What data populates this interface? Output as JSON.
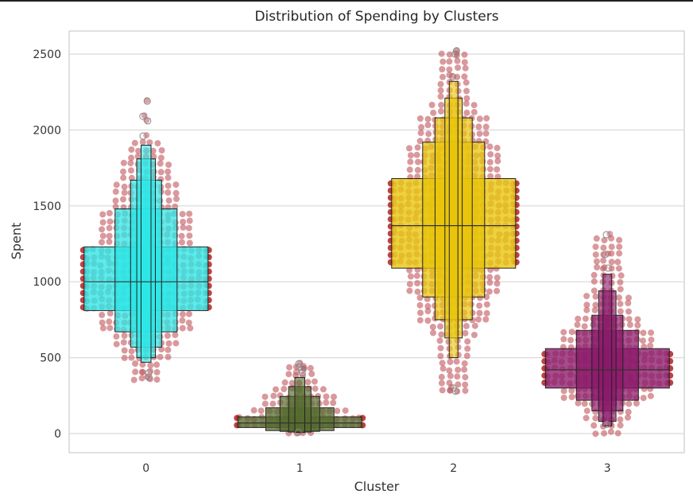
{
  "chart_data": {
    "type": "boxen",
    "title": "Distribution of Spending by Clusters",
    "xlabel": "Cluster",
    "ylabel": "Spent",
    "categories": [
      "0",
      "1",
      "2",
      "3"
    ],
    "yticks": [
      0,
      500,
      1000,
      1500,
      2000,
      2500
    ],
    "ylim": [
      -120,
      2650
    ],
    "grid": true,
    "colors": {
      "box": [
        "#2de6e6",
        "#556b2f",
        "#e8c50a",
        "#8b1a6b"
      ],
      "swarm": "#c0555c",
      "swarm_edge": "#b22222",
      "edge": "#222222"
    },
    "boxen": [
      {
        "category": "0",
        "median": 1000,
        "levels": [
          {
            "low": 810,
            "high": 1230,
            "width": 1.0
          },
          {
            "low": 670,
            "high": 1480,
            "width": 0.5
          },
          {
            "low": 570,
            "high": 1670,
            "width": 0.25
          },
          {
            "low": 500,
            "high": 1810,
            "width": 0.15
          },
          {
            "low": 470,
            "high": 1900,
            "width": 0.08
          }
        ],
        "outliers": [
          2190,
          2090,
          2060,
          1960,
          400,
          370
        ],
        "swarm_range": [
          360,
          1960
        ]
      },
      {
        "category": "1",
        "median": 70,
        "levels": [
          {
            "low": 40,
            "high": 110,
            "width": 1.0
          },
          {
            "low": 20,
            "high": 170,
            "width": 0.55
          },
          {
            "low": 15,
            "high": 245,
            "width": 0.32
          },
          {
            "low": 10,
            "high": 310,
            "width": 0.18
          },
          {
            "low": 8,
            "high": 370,
            "width": 0.08
          }
        ],
        "outliers": [
          460,
          440,
          420,
          400,
          8
        ],
        "swarm_range": [
          8,
          470
        ]
      },
      {
        "category": "2",
        "median": 1370,
        "levels": [
          {
            "low": 1090,
            "high": 1680,
            "width": 1.0
          },
          {
            "low": 900,
            "high": 1920,
            "width": 0.5
          },
          {
            "low": 750,
            "high": 2080,
            "width": 0.3
          },
          {
            "low": 630,
            "high": 2210,
            "width": 0.14
          },
          {
            "low": 500,
            "high": 2320,
            "width": 0.07
          }
        ],
        "outliers": [
          2520,
          2500,
          2350,
          300,
          280
        ],
        "swarm_range": [
          280,
          2530
        ]
      },
      {
        "category": "3",
        "median": 420,
        "levels": [
          {
            "low": 300,
            "high": 560,
            "width": 1.0
          },
          {
            "low": 220,
            "high": 680,
            "width": 0.5
          },
          {
            "low": 150,
            "high": 780,
            "width": 0.25
          },
          {
            "low": 80,
            "high": 940,
            "width": 0.14
          },
          {
            "low": 50,
            "high": 1050,
            "width": 0.07
          }
        ],
        "outliers": [
          1310,
          1180,
          1090,
          60
        ],
        "swarm_range": [
          5,
          1320
        ]
      }
    ]
  }
}
